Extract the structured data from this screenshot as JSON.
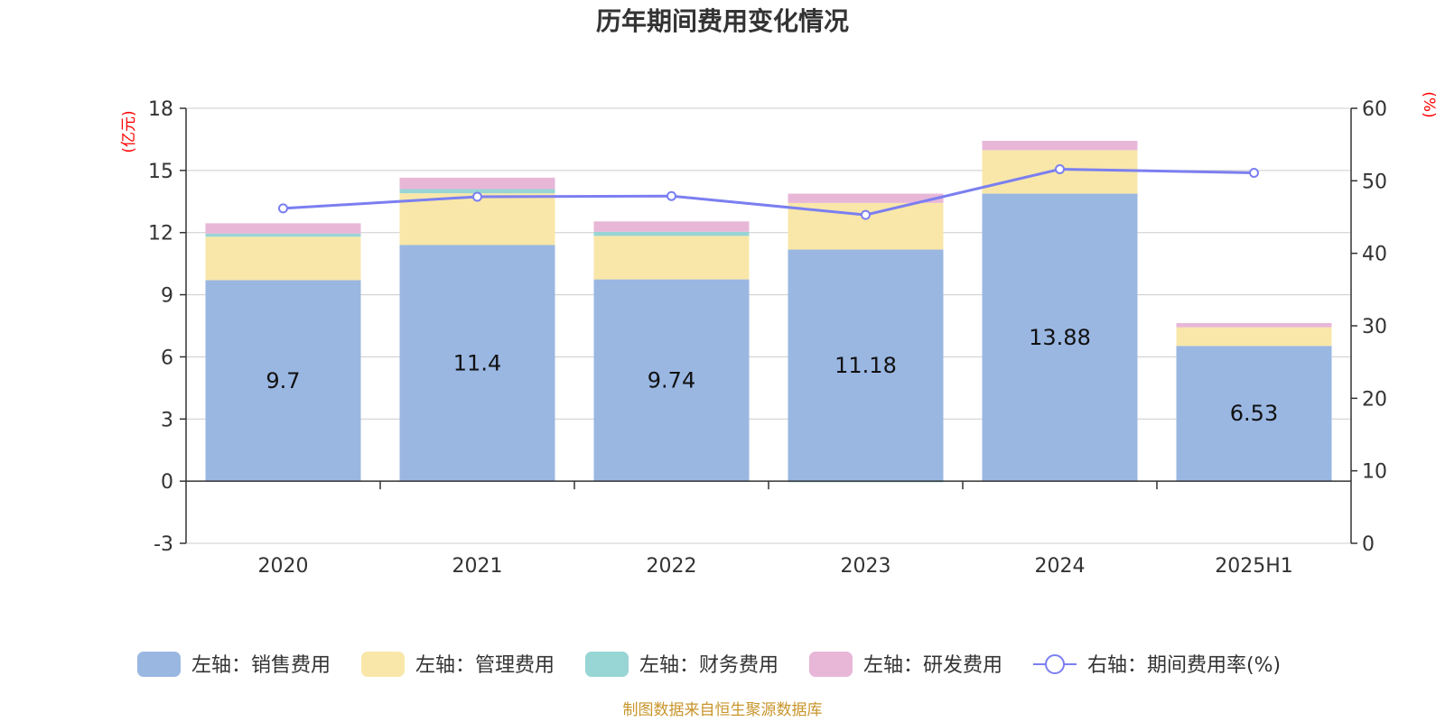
{
  "chart_data": {
    "type": "bar",
    "title": "历年期间费用变化情况",
    "categories": [
      "2020",
      "2021",
      "2022",
      "2023",
      "2024",
      "2025H1"
    ],
    "left_axis": {
      "unit_label": "(亿元)",
      "ylim": [
        -3,
        18
      ],
      "ticks": [
        -3,
        0,
        3,
        6,
        9,
        12,
        15,
        18
      ]
    },
    "right_axis": {
      "unit_label": "(%)",
      "ylim": [
        0,
        60
      ],
      "ticks": [
        0,
        10,
        20,
        30,
        40,
        50,
        60
      ]
    },
    "stacked": true,
    "series": [
      {
        "name": "左轴：销售费用",
        "axis": "left",
        "type": "bar",
        "color": "#9ab7e2",
        "values": [
          9.7,
          11.4,
          9.74,
          11.18,
          13.88,
          6.53
        ],
        "show_labels": true
      },
      {
        "name": "左轴：管理费用",
        "axis": "left",
        "type": "bar",
        "color": "#f8e7a9",
        "values": [
          2.1,
          2.5,
          2.1,
          2.25,
          2.1,
          0.9
        ],
        "show_labels": false
      },
      {
        "name": "左轴：财务费用",
        "axis": "left",
        "type": "bar",
        "color": "#98d5d5",
        "values": [
          0.15,
          0.2,
          0.2,
          -0.05,
          0.0,
          0.0
        ],
        "show_labels": false
      },
      {
        "name": "左轴：研发费用",
        "axis": "left",
        "type": "bar",
        "color": "#e8b7d8",
        "values": [
          0.5,
          0.55,
          0.5,
          0.45,
          0.45,
          0.2
        ],
        "show_labels": false
      },
      {
        "name": "右轴：期间费用率(%)",
        "axis": "right",
        "type": "line",
        "color": "#7b7ff0",
        "values": [
          46.2,
          47.8,
          47.9,
          45.3,
          51.6,
          51.1
        ]
      }
    ],
    "grid": true,
    "legend_position": "bottom"
  },
  "source_note": "制图数据来自恒生聚源数据库"
}
